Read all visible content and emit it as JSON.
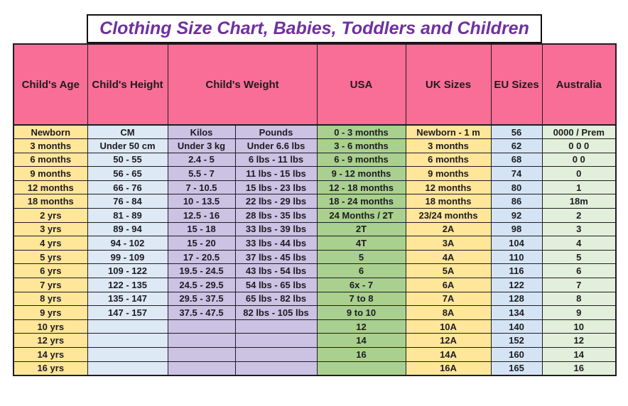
{
  "title": "Clothing Size Chart, Babies, Toddlers and Children",
  "colors": {
    "pink": "#f96e96",
    "yellow": "#ffe699",
    "blue": "#dde9f4",
    "lavender": "#cbc2e4",
    "green": "#a9d08e",
    "eublue": "#d4e4f4",
    "ltgreen": "#e2efda",
    "purple": "#7030a0",
    "border": "#1f1c22",
    "text": "#1d1b22"
  },
  "chart_data": {
    "type": "table",
    "title": "Clothing Size Chart, Babies, Toddlers and Children",
    "header_cells": [
      {
        "label": "Child's Age",
        "colspan": 1
      },
      {
        "label": "Child's Height",
        "colspan": 1
      },
      {
        "label": "Child's Weight",
        "colspan": 2
      },
      {
        "label": "USA",
        "colspan": 1
      },
      {
        "label": "UK Sizes",
        "colspan": 1
      },
      {
        "label": "EU Sizes",
        "colspan": 1
      },
      {
        "label": "Australia",
        "colspan": 1
      }
    ],
    "columns": [
      "Child's Age",
      "Child's Height",
      "Child's Weight - Kilos",
      "Child's Weight - Pounds",
      "USA",
      "UK Sizes",
      "EU Sizes",
      "Australia"
    ],
    "rows": [
      [
        "Newborn",
        "CM",
        "Kilos",
        "Pounds",
        "0 - 3 months",
        "Newborn - 1 m",
        "56",
        "0000 / Prem"
      ],
      [
        "3 months",
        "Under 50 cm",
        "Under 3 kg",
        "Under 6.6 lbs",
        "3 - 6 months",
        "3 months",
        "62",
        "0 0 0"
      ],
      [
        "6 months",
        "50 - 55",
        "2.4 - 5",
        "6 lbs - 11 lbs",
        "6 - 9 months",
        "6 months",
        "68",
        "0 0"
      ],
      [
        "9 months",
        "56 - 65",
        "5.5 - 7",
        "11 lbs - 15 lbs",
        "9 - 12 months",
        "9 months",
        "74",
        "0"
      ],
      [
        "12 months",
        "66 - 76",
        "7 - 10.5",
        "15 lbs - 23 lbs",
        "12 - 18 months",
        "12 months",
        "80",
        "1"
      ],
      [
        "18 months",
        "76 - 84",
        "10 - 13.5",
        "22 lbs - 29 lbs",
        "18 - 24 months",
        "18 months",
        "86",
        "18m"
      ],
      [
        "2 yrs",
        "81 - 89",
        "12.5 - 16",
        "28 lbs - 35 lbs",
        "24 Months / 2T",
        "23/24 months",
        "92",
        "2"
      ],
      [
        "3 yrs",
        "89 - 94",
        "15 - 18",
        "33 lbs - 39 lbs",
        "2T",
        "2A",
        "98",
        "3"
      ],
      [
        "4 yrs",
        "94 - 102",
        "15 - 20",
        "33 lbs - 44 lbs",
        "4T",
        "3A",
        "104",
        "4"
      ],
      [
        "5 yrs",
        "99 - 109",
        "17 - 20.5",
        "37 lbs - 45 lbs",
        "5",
        "4A",
        "110",
        "5"
      ],
      [
        "6 yrs",
        "109 - 122",
        "19.5 - 24.5",
        "43 lbs - 54 lbs",
        "6",
        "5A",
        "116",
        "6"
      ],
      [
        "7 yrs",
        "122 - 135",
        "24.5 - 29.5",
        "54 lbs - 65 lbs",
        "6x - 7",
        "6A",
        "122",
        "7"
      ],
      [
        "8 yrs",
        "135 - 147",
        "29.5 - 37.5",
        "65 lbs - 82 lbs",
        "7 to 8",
        "7A",
        "128",
        "8"
      ],
      [
        "9 yrs",
        "147 - 157",
        "37.5 - 47.5",
        "82 lbs - 105 lbs",
        "9 to 10",
        "8A",
        "134",
        "9"
      ],
      [
        "10 yrs",
        "",
        "",
        "",
        "12",
        "10A",
        "140",
        "10"
      ],
      [
        "12 yrs",
        "",
        "",
        "",
        "14",
        "12A",
        "152",
        "12"
      ],
      [
        "14 yrs",
        "",
        "",
        "",
        "16",
        "14A",
        "160",
        "14"
      ],
      [
        "16 yrs",
        "",
        "",
        "",
        "",
        "16A",
        "165",
        "16"
      ]
    ]
  }
}
